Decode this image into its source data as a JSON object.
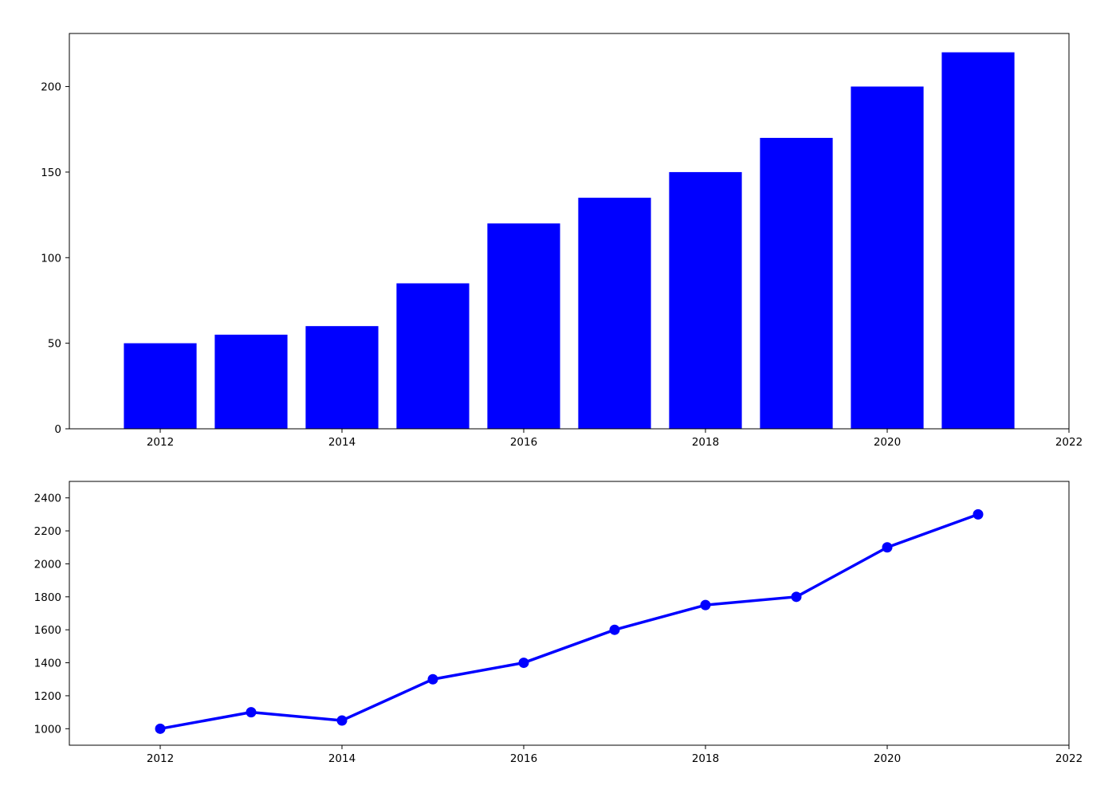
{
  "chart_data": [
    {
      "type": "bar",
      "title": "",
      "xlabel": "",
      "ylabel": "",
      "x": [
        2012,
        2013,
        2014,
        2015,
        2016,
        2017,
        2018,
        2019,
        2020,
        2021
      ],
      "values": [
        50,
        55,
        60,
        85,
        120,
        135,
        150,
        170,
        200,
        220
      ],
      "xlim": [
        2011,
        2022
      ],
      "ylim": [
        0,
        231
      ],
      "xticks": [
        2012,
        2014,
        2016,
        2018,
        2020,
        2022
      ],
      "yticks": [
        0,
        50,
        100,
        150,
        200
      ],
      "color": "#0000ff",
      "grid": false
    },
    {
      "type": "line",
      "title": "",
      "xlabel": "",
      "ylabel": "",
      "x": [
        2012,
        2013,
        2014,
        2015,
        2016,
        2017,
        2018,
        2019,
        2020,
        2021
      ],
      "values": [
        1000,
        1100,
        1050,
        1300,
        1400,
        1600,
        1750,
        1800,
        2100,
        2300
      ],
      "xlim": [
        2011,
        2022
      ],
      "ylim": [
        900,
        2500
      ],
      "xticks": [
        2012,
        2014,
        2016,
        2018,
        2020,
        2022
      ],
      "yticks": [
        1000,
        1200,
        1400,
        1600,
        1800,
        2000,
        2200,
        2400
      ],
      "color": "#0000ff",
      "markers": true,
      "grid": false
    }
  ]
}
